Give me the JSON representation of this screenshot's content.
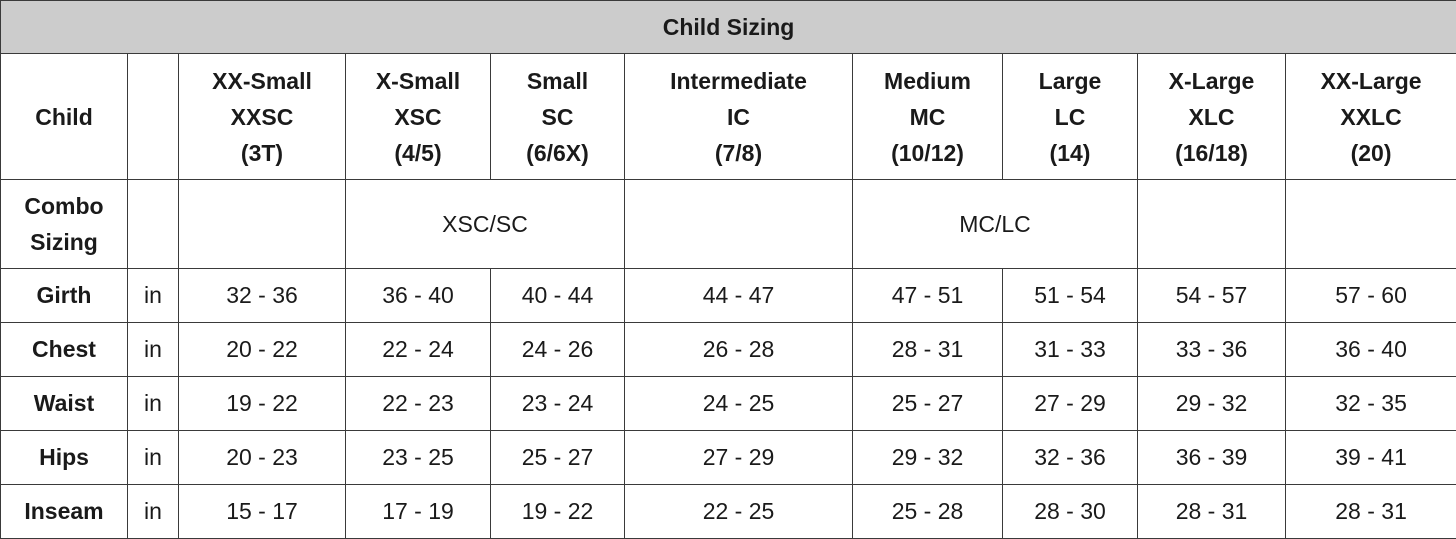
{
  "title": "Child Sizing",
  "header": {
    "corner_label": "Child",
    "unit_header": "",
    "sizes": [
      {
        "name": "XX-Small",
        "code": "XXSC",
        "range": "(3T)"
      },
      {
        "name": "X-Small",
        "code": "XSC",
        "range": "(4/5)"
      },
      {
        "name": "Small",
        "code": "SC",
        "range": "(6/6X)"
      },
      {
        "name": "Intermediate",
        "code": "IC",
        "range": "(7/8)"
      },
      {
        "name": "Medium",
        "code": "MC",
        "range": "(10/12)"
      },
      {
        "name": "Large",
        "code": "LC",
        "range": "(14)"
      },
      {
        "name": "X-Large",
        "code": "XLC",
        "range": "(16/18)"
      },
      {
        "name": "XX-Large",
        "code": "XXLC",
        "range": "(20)"
      }
    ]
  },
  "combo": {
    "label_line1": "Combo",
    "label_line2": "Sizing",
    "groups": [
      "",
      "XSC/SC",
      "",
      "MC/LC",
      "",
      ""
    ]
  },
  "rows": [
    {
      "label": "Girth",
      "unit": "in",
      "values": [
        "32 - 36",
        "36 - 40",
        "40 - 44",
        "44 - 47",
        "47 - 51",
        "51 - 54",
        "54 - 57",
        "57 - 60"
      ]
    },
    {
      "label": "Chest",
      "unit": "in",
      "values": [
        "20 - 22",
        "22 - 24",
        "24 - 26",
        "26 - 28",
        "28 - 31",
        "31 - 33",
        "33 - 36",
        "36 - 40"
      ]
    },
    {
      "label": "Waist",
      "unit": "in",
      "values": [
        "19 - 22",
        "22 - 23",
        "23 - 24",
        "24 - 25",
        "25 - 27",
        "27 - 29",
        "29 - 32",
        "32 - 35"
      ]
    },
    {
      "label": "Hips",
      "unit": "in",
      "values": [
        "20 - 23",
        "23 - 25",
        "25 - 27",
        "27 - 29",
        "29 - 32",
        "32 - 36",
        "36 - 39",
        "39 - 41"
      ]
    },
    {
      "label": "Inseam",
      "unit": "in",
      "values": [
        "15 - 17",
        "17 - 19",
        "19 - 22",
        "22 - 25",
        "25 - 28",
        "28 - 30",
        "28 - 31",
        "28 - 31"
      ]
    }
  ]
}
